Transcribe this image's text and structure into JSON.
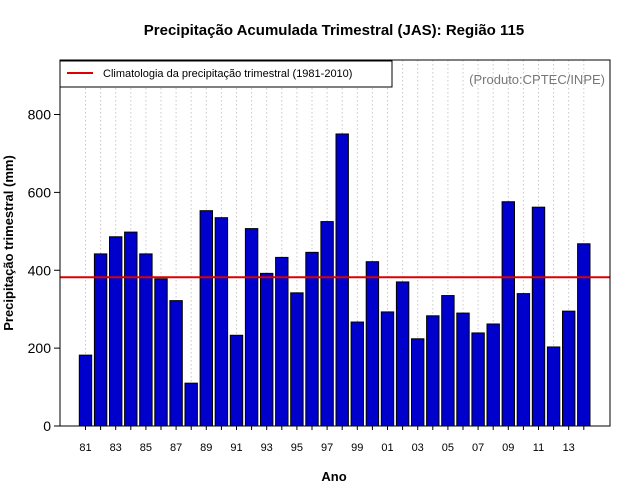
{
  "chart_data": {
    "type": "bar",
    "title": "Precipitação Acumulada Trimestral (JAS): Região 115",
    "xlabel": "Ano",
    "ylabel": "Precipitação trimestral (mm)",
    "ylim": [
      0,
      940
    ],
    "yticks": [
      0,
      200,
      400,
      600,
      800
    ],
    "years": [
      1981,
      1982,
      1983,
      1984,
      1985,
      1986,
      1987,
      1988,
      1989,
      1990,
      1991,
      1992,
      1993,
      1994,
      1995,
      1996,
      1997,
      1998,
      1999,
      2000,
      2001,
      2002,
      2003,
      2004,
      2005,
      2006,
      2007,
      2008,
      2009,
      2010,
      2011,
      2012,
      2013,
      2014
    ],
    "xtick_labels": [
      {
        "year": 1981,
        "label": "81"
      },
      {
        "year": 1983,
        "label": "83"
      },
      {
        "year": 1985,
        "label": "85"
      },
      {
        "year": 1987,
        "label": "87"
      },
      {
        "year": 1989,
        "label": "89"
      },
      {
        "year": 1991,
        "label": "91"
      },
      {
        "year": 1993,
        "label": "93"
      },
      {
        "year": 1995,
        "label": "95"
      },
      {
        "year": 1997,
        "label": "97"
      },
      {
        "year": 1999,
        "label": "99"
      },
      {
        "year": 2001,
        "label": "01"
      },
      {
        "year": 2003,
        "label": "03"
      },
      {
        "year": 2005,
        "label": "05"
      },
      {
        "year": 2007,
        "label": "07"
      },
      {
        "year": 2009,
        "label": "09"
      },
      {
        "year": 2011,
        "label": "11"
      },
      {
        "year": 2013,
        "label": "13"
      }
    ],
    "series": [
      {
        "name": "Precipitação trimestral",
        "values": [
          182,
          442,
          486,
          498,
          442,
          378,
          322,
          110,
          553,
          535,
          233,
          507,
          392,
          433,
          342,
          446,
          525,
          750,
          267,
          422,
          293,
          370,
          224,
          283,
          335,
          290,
          239,
          262,
          576,
          340,
          562,
          203,
          295,
          468
        ]
      }
    ],
    "climatology": {
      "label": "Climatologia da precipitação trimestral (1981-2010)",
      "value": 382
    },
    "source_label": "(Produto:CPTEC/INPE)",
    "grid": "vertical-dotted",
    "legend_position": "top-left"
  },
  "colors": {
    "bar": "#0000cc",
    "bar_border": "#000000",
    "climatology_line": "#dd0000",
    "grid": "#c8c8c8",
    "source_text": "#777777"
  }
}
